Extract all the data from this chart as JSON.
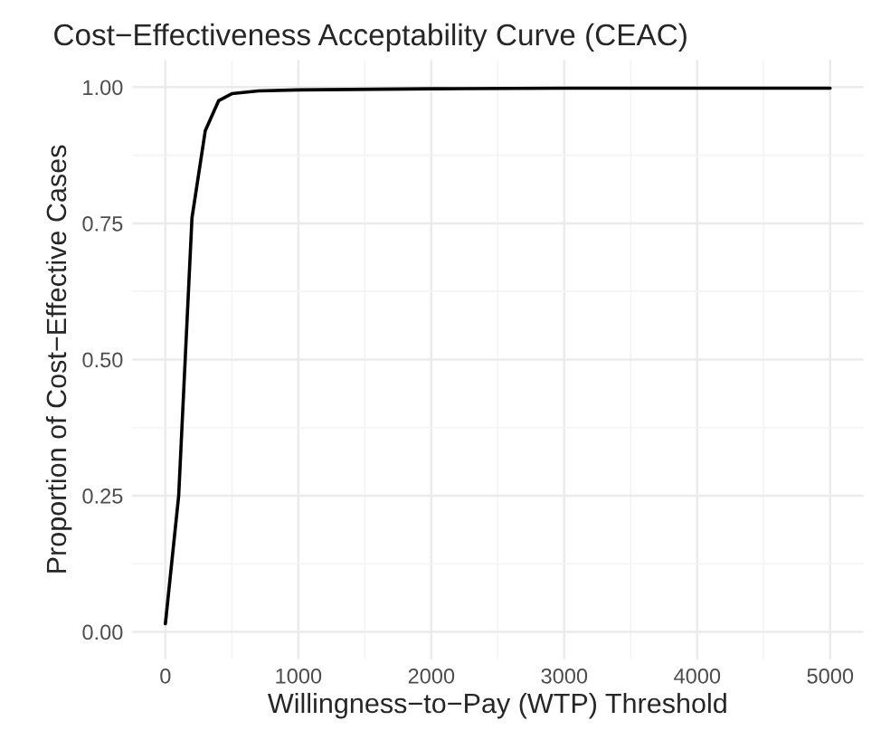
{
  "chart_data": {
    "type": "line",
    "title": "Cost−Effectiveness Acceptability Curve (CEAC)",
    "xlabel": "Willingness−to−Pay (WTP) Threshold",
    "ylabel": "Proportion of Cost−Effective Cases",
    "x": [
      0,
      100,
      200,
      300,
      400,
      500,
      700,
      1000,
      2000,
      3000,
      5000
    ],
    "series": [
      {
        "color": "#000000",
        "values": [
          0.015,
          0.25,
          0.76,
          0.92,
          0.975,
          0.988,
          0.993,
          0.995,
          0.997,
          0.998,
          0.998
        ]
      }
    ],
    "xlim": [
      -250,
      5250
    ],
    "ylim": [
      -0.05,
      1.05
    ],
    "xticks": [
      0,
      1000,
      2000,
      3000,
      4000,
      5000
    ],
    "yticks": [
      {
        "value": 0,
        "label": "0.00"
      },
      {
        "value": 0.25,
        "label": "0.25"
      },
      {
        "value": 0.5,
        "label": "0.50"
      },
      {
        "value": 0.75,
        "label": "0.75"
      },
      {
        "value": 1,
        "label": "1.00"
      }
    ],
    "grid": true,
    "marker": "none",
    "line_style": "solid"
  }
}
